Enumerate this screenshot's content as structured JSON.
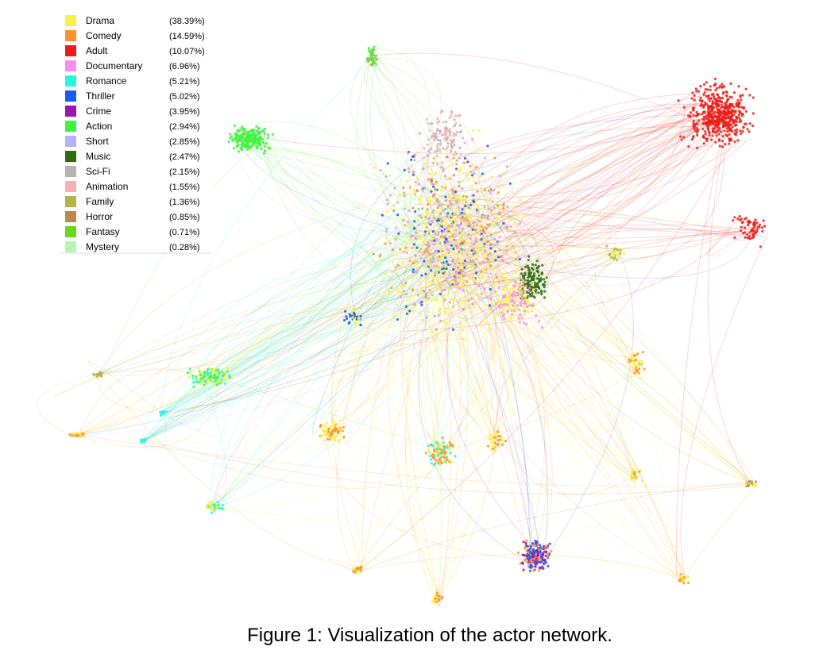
{
  "legend": [
    {
      "name": "Drama",
      "percent": "(38.39%)",
      "color": "#f7f24a"
    },
    {
      "name": "Comedy",
      "percent": "(14.59%)",
      "color": "#f7922e"
    },
    {
      "name": "Adult",
      "percent": "(10.07%)",
      "color": "#ee1c18"
    },
    {
      "name": "Documentary",
      "percent": "(6.96%)",
      "color": "#f590ee"
    },
    {
      "name": "Romance",
      "percent": "(5.21%)",
      "color": "#2af5e0"
    },
    {
      "name": "Thriller",
      "percent": "(5.02%)",
      "color": "#1a5cf0"
    },
    {
      "name": "Crime",
      "percent": "(3.95%)",
      "color": "#9a16b4"
    },
    {
      "name": "Action",
      "percent": "(2.94%)",
      "color": "#3ef23e"
    },
    {
      "name": "Short",
      "percent": "(2.85%)",
      "color": "#b4b2f5"
    },
    {
      "name": "Music",
      "percent": "(2.47%)",
      "color": "#2e6e10"
    },
    {
      "name": "Sci-Fi",
      "percent": "(2.15%)",
      "color": "#b4b4b4"
    },
    {
      "name": "Animation",
      "percent": "(1.55%)",
      "color": "#f7b0b4"
    },
    {
      "name": "Family",
      "percent": "(1.36%)",
      "color": "#b2b44c"
    },
    {
      "name": "Horror",
      "percent": "(0.85%)",
      "color": "#b88a4a"
    },
    {
      "name": "Fantasy",
      "percent": "(0.71%)",
      "color": "#6ad61c"
    },
    {
      "name": "Mystery",
      "percent": "(0.28%)",
      "color": "#b6f5b2"
    }
  ],
  "caption": "Figure 1: Visualization of the actor network."
}
